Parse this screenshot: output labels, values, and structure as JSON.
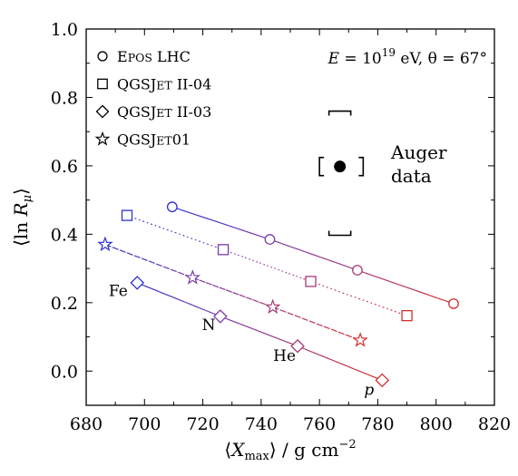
{
  "chart_data": {
    "type": "scatter",
    "xlabel": "⟨X_max⟩ / g cm^−2",
    "ylabel": "⟨ln R_μ⟩",
    "xlim": [
      680,
      820
    ],
    "ylim": [
      -0.1,
      1.0
    ],
    "xticks": [
      "680",
      "700",
      "720",
      "740",
      "760",
      "780",
      "800",
      "820"
    ],
    "yticks": [
      "0.0",
      "0.2",
      "0.4",
      "0.6",
      "0.8",
      "1.0"
    ],
    "grid": false,
    "legend_position": "top-left",
    "annotation": "E = 10^19 eV, θ = 67°",
    "annotation_parts": {
      "e_eq": "E = 10",
      "exp": "19",
      "ev_theta": " eV, θ = 67°"
    },
    "point_colors": [
      "#3030d0",
      "#7a3aa8",
      "#a53a7a",
      "#d23030"
    ],
    "composition_labels": [
      {
        "text": "Fe",
        "x": 691,
        "y": 0.22
      },
      {
        "text": "N",
        "x": 722,
        "y": 0.12
      },
      {
        "text": "He",
        "x": 748,
        "y": 0.03
      },
      {
        "text": "p",
        "x": 777,
        "y": -0.07
      }
    ],
    "series": [
      {
        "name": "EPOS LHC",
        "legend_parts": [
          "E",
          "POS",
          " LHC"
        ],
        "marker": "circle",
        "linestyle": "dashed",
        "x": [
          709.5,
          743,
          773,
          806
        ],
        "y": [
          0.48,
          0.385,
          0.295,
          0.197
        ]
      },
      {
        "name": "QGSJET II-04",
        "legend_parts": [
          "QGSJ",
          "ET",
          " II-04"
        ],
        "marker": "square",
        "linestyle": "dotted",
        "x": [
          694,
          727,
          757,
          790
        ],
        "y": [
          0.455,
          0.355,
          0.262,
          0.162
        ]
      },
      {
        "name": "QGSJET II-03",
        "legend_parts": [
          "QGSJ",
          "ET",
          " II-03"
        ],
        "marker": "diamond",
        "linestyle": "solid",
        "x": [
          697.5,
          726,
          752.5,
          781.5
        ],
        "y": [
          0.258,
          0.16,
          0.073,
          -0.027
        ]
      },
      {
        "name": "QGSJET01",
        "legend_parts": [
          "QGSJ",
          "ET",
          "01"
        ],
        "marker": "star",
        "linestyle": "dashdot",
        "x": [
          686.5,
          716.5,
          744,
          774
        ],
        "y": [
          0.37,
          0.273,
          0.187,
          0.09
        ]
      }
    ],
    "auger": {
      "label_line1": "Auger",
      "label_line2": "data",
      "x": 767,
      "y": 0.598,
      "x_sys_lo": 760,
      "x_sys_hi": 775,
      "y_sys_hi": 0.76,
      "y_sys_lo": 0.397
    }
  }
}
